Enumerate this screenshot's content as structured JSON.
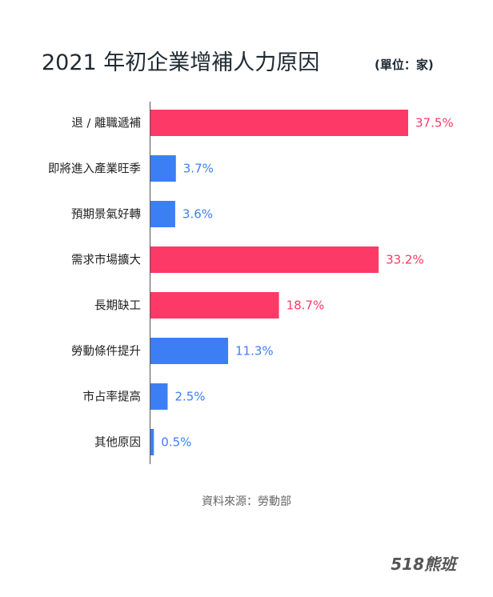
{
  "chart_data": {
    "type": "bar",
    "orientation": "horizontal",
    "title": "2021 年初企業增補人力原因",
    "unit_note": "(單位：家)",
    "categories": [
      "退 / 離職遞補",
      "即將進入產業旺季",
      "預期景氣好轉",
      "需求市場擴大",
      "長期缺工",
      "勞動條件提升",
      "市占率提高",
      "其他原因"
    ],
    "values": [
      37.5,
      3.7,
      3.6,
      33.2,
      18.7,
      11.3,
      2.5,
      0.5
    ],
    "value_labels": [
      "37.5%",
      "3.7%",
      "3.6%",
      "33.2%",
      "18.7%",
      "11.3%",
      "2.5%",
      "0.5%"
    ],
    "highlighted": [
      true,
      false,
      false,
      true,
      true,
      false,
      false,
      false
    ],
    "colors": {
      "highlight": "#fc3967",
      "normal": "#3c7ff5"
    },
    "xlim": [
      0,
      37.5
    ],
    "grid": false,
    "source": "資料來源：勞動部"
  },
  "brand": {
    "logo_text": "518熊班"
  }
}
